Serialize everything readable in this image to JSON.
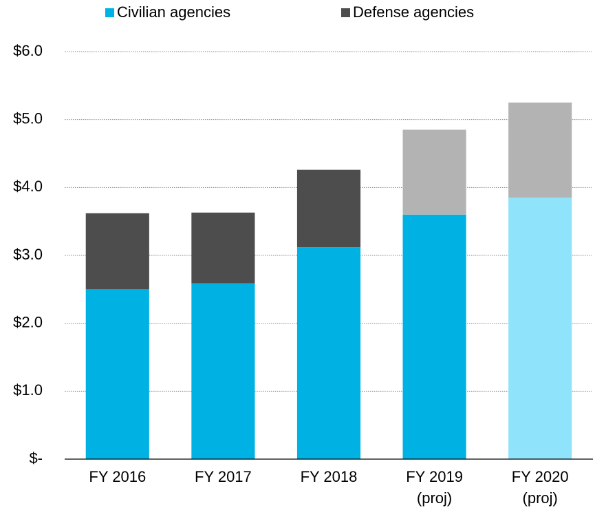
{
  "chart_data": {
    "type": "stacked-bar",
    "categories": [
      "FY 2016",
      "FY 2017",
      "FY 2018",
      "FY 2019\n(proj)",
      "FY 2020\n(proj)"
    ],
    "series": [
      {
        "name": "Civilian agencies",
        "color": "#00b2e3",
        "colors": [
          "#00b2e3",
          "#00b2e3",
          "#00b2e3",
          "#00b2e3",
          "#8fe3fa"
        ],
        "values": [
          2.5,
          2.59,
          3.12,
          3.6,
          3.85
        ]
      },
      {
        "name": "Defense agencies",
        "color": "#4d4d4d",
        "colors": [
          "#4d4d4d",
          "#4d4d4d",
          "#4d4d4d",
          "#b3b3b3",
          "#b3b3b3"
        ],
        "values": [
          1.12,
          1.04,
          1.14,
          1.25,
          1.4
        ]
      }
    ],
    "ylim": [
      0,
      6
    ],
    "yticks": [
      {
        "value": 0,
        "label": "$-"
      },
      {
        "value": 1,
        "label": "$1.0"
      },
      {
        "value": 2,
        "label": "$2.0"
      },
      {
        "value": 3,
        "label": "$3.0"
      },
      {
        "value": 4,
        "label": "$4.0"
      },
      {
        "value": 5,
        "label": "$5.0"
      },
      {
        "value": 6,
        "label": "$6.0"
      }
    ],
    "grid": true,
    "legend": "top"
  }
}
